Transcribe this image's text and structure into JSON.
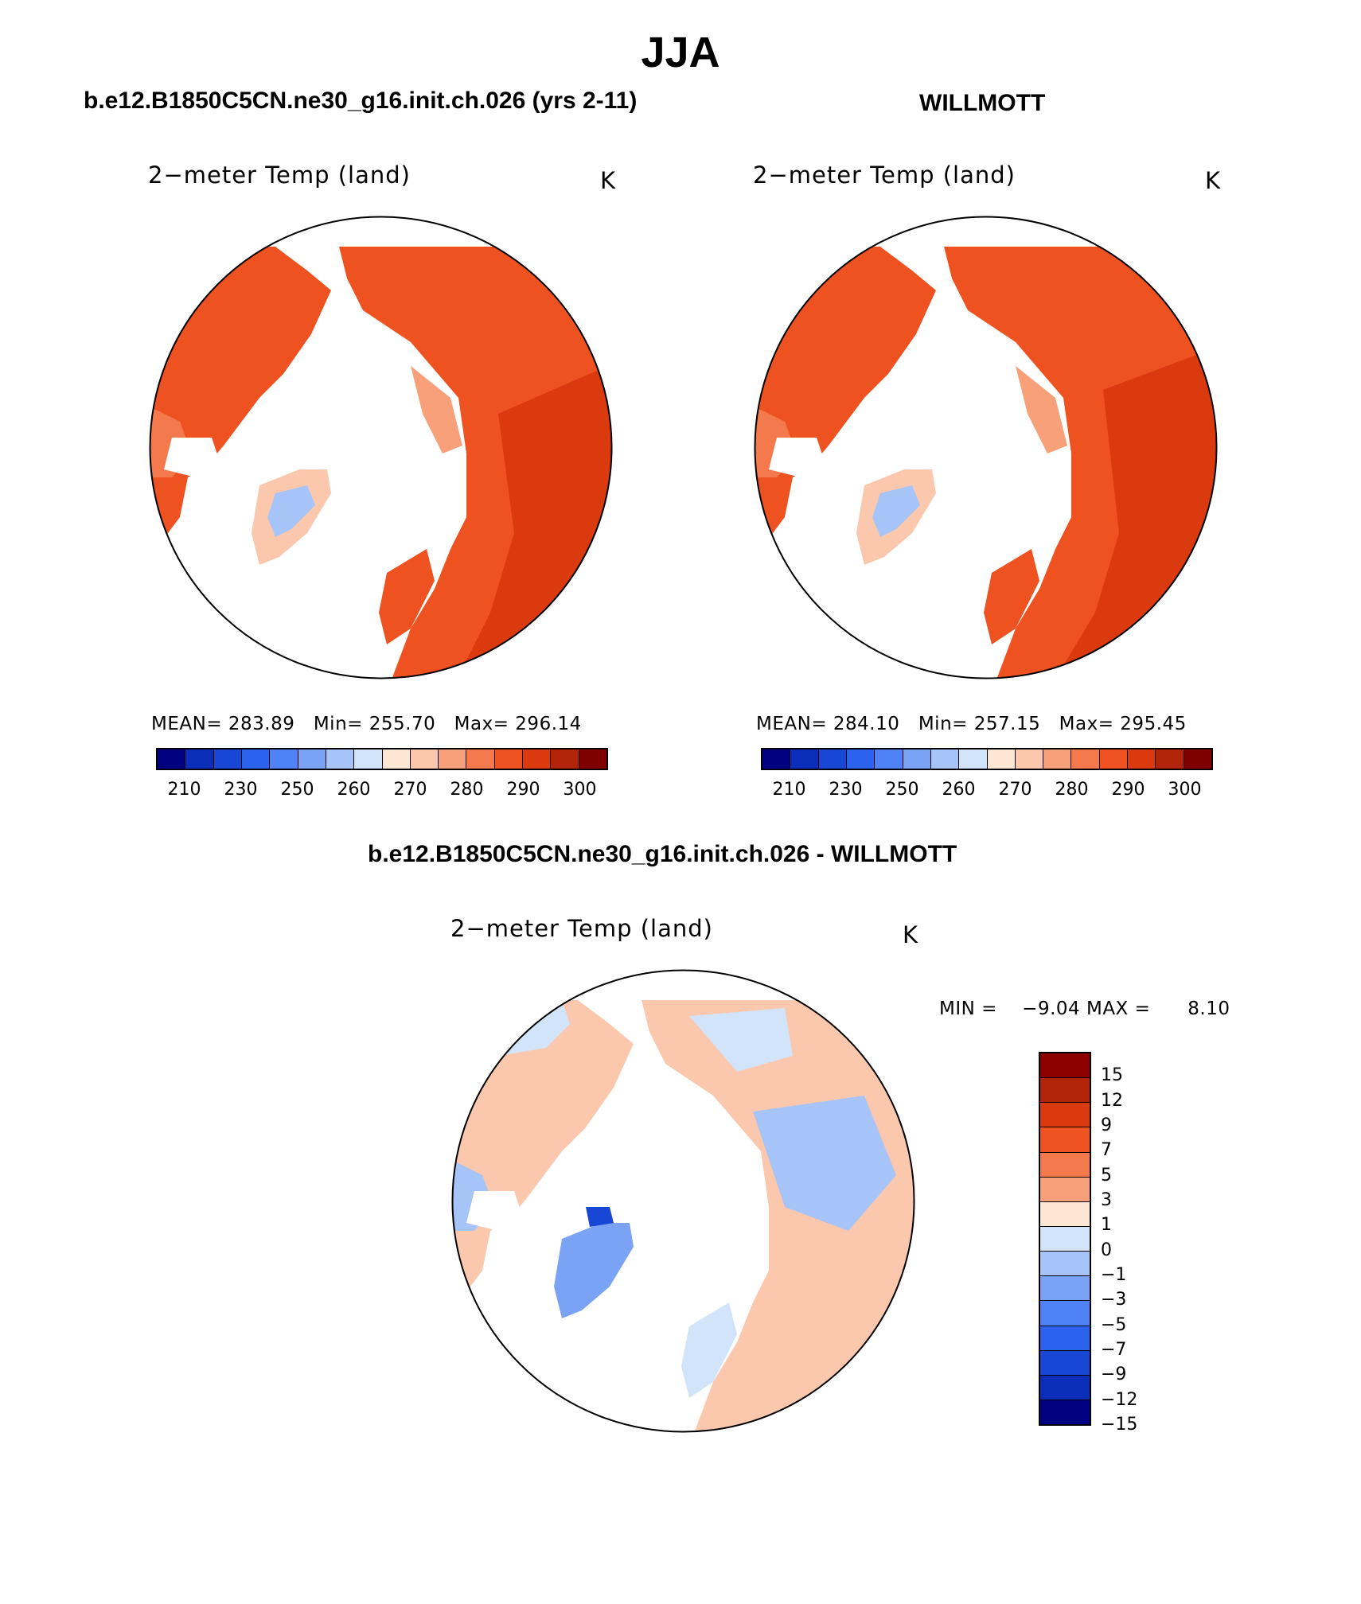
{
  "title": "JJA",
  "panels": {
    "model": {
      "title": "b.e12.B1850C5CN.ne30_g16.init.ch.026 (yrs 2-11)",
      "variable": "2−meter Temp (land)",
      "units": "K",
      "mean_label": "MEAN=",
      "mean": "283.89",
      "min_label": "Min=",
      "min": "255.70",
      "max_label": "Max=",
      "max": "296.14"
    },
    "obs": {
      "title": "WILLMOTT",
      "variable": "2−meter Temp (land)",
      "units": "K",
      "mean_label": "MEAN=",
      "mean": "284.10",
      "min_label": "Min=",
      "min": "257.15",
      "max_label": "Max=",
      "max": "295.45"
    },
    "diff": {
      "title": "b.e12.B1850C5CN.ne30_g16.init.ch.026 - WILLMOTT",
      "variable": "2−meter Temp (land)",
      "units": "K",
      "min_label": "MIN =",
      "min": "−9.04",
      "max_label": "MAX =",
      "max": "8.10"
    }
  },
  "abs_colorbar": {
    "colors": [
      "#000080",
      "#0a2eb8",
      "#1847d6",
      "#2b62ee",
      "#4f82f5",
      "#7aa3f5",
      "#a6c4f7",
      "#d2e4fa",
      "#fde6d4",
      "#fbc8ad",
      "#f7a07a",
      "#f47a4d",
      "#ef5221",
      "#db3a0e",
      "#b22407",
      "#800000"
    ],
    "ticks": [
      "210",
      "230",
      "250",
      "260",
      "270",
      "280",
      "290",
      "300"
    ]
  },
  "diff_colorbar": {
    "colors_top_to_bottom": [
      "#8c0000",
      "#b22407",
      "#db3a0e",
      "#ef5221",
      "#f47a4d",
      "#f7a07a",
      "#fde6d4",
      "#d2e4fa",
      "#a6c4f7",
      "#7aa3f5",
      "#4f82f5",
      "#2b62ee",
      "#1847d6",
      "#0a2eb8",
      "#000080"
    ],
    "ticks_top_to_bottom": [
      "15",
      "12",
      "9",
      "7",
      "5",
      "3",
      "1",
      "0",
      "−1",
      "−3",
      "−5",
      "−7",
      "−9",
      "−12",
      "−15"
    ]
  }
}
